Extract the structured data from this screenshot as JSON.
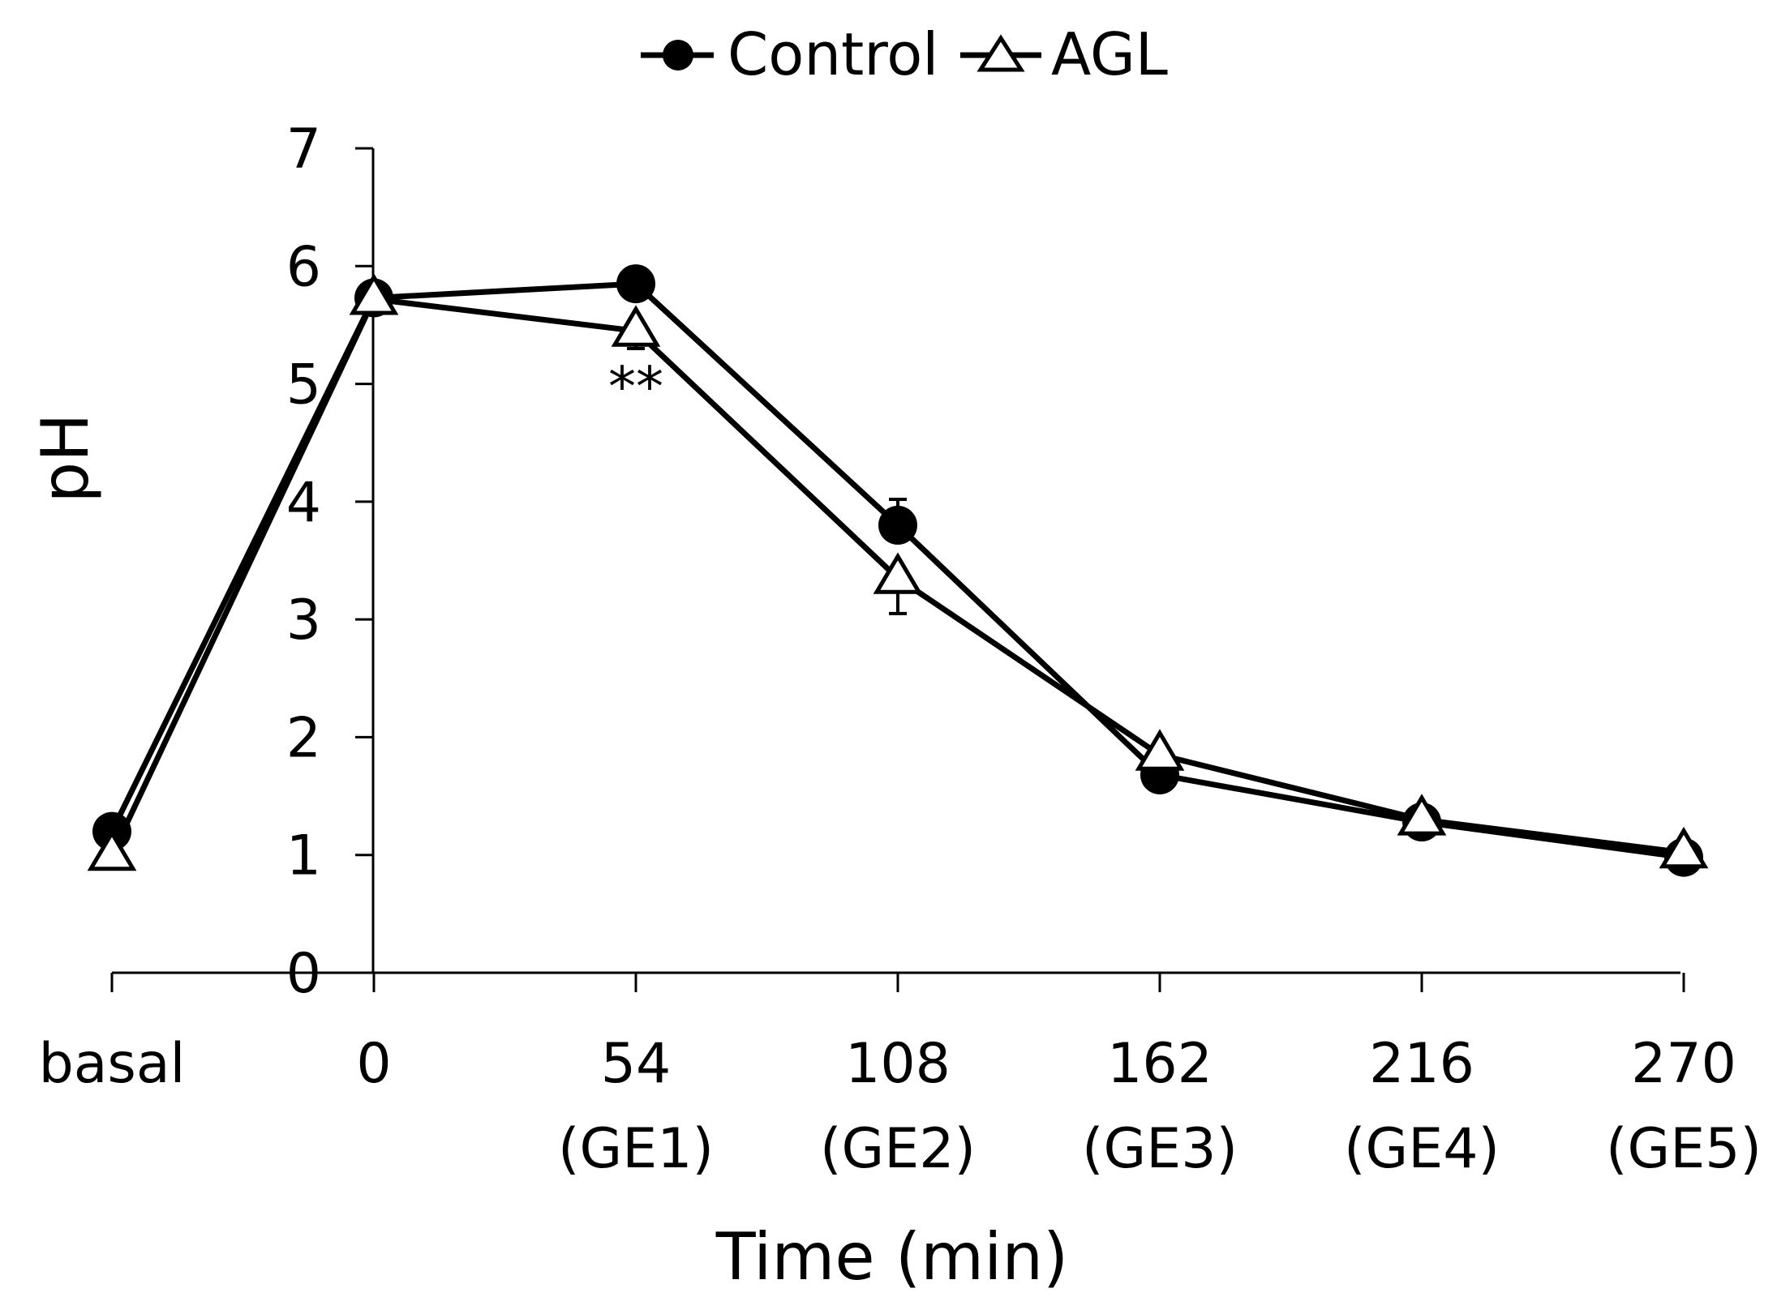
{
  "chart_data": {
    "type": "line",
    "title": "",
    "xlabel": "Time (min)",
    "ylabel": "pH",
    "ylim": [
      0,
      7
    ],
    "yticks": [
      "0",
      "1",
      "2",
      "3",
      "4",
      "5",
      "6",
      "7"
    ],
    "categories": [
      {
        "main": "basal",
        "sub": ""
      },
      {
        "main": "0",
        "sub": ""
      },
      {
        "main": "54",
        "sub": "(GE1)"
      },
      {
        "main": "108",
        "sub": "(GE2)"
      },
      {
        "main": "162",
        "sub": "(GE3)"
      },
      {
        "main": "216",
        "sub": "(GE4)"
      },
      {
        "main": "270",
        "sub": "(GE5)"
      }
    ],
    "series": [
      {
        "name": "Control",
        "marker": "filled-circle",
        "values": [
          1.2,
          5.73,
          5.85,
          3.8,
          1.68,
          1.28,
          0.98
        ],
        "errors": [
          0,
          0,
          0,
          0.22,
          0,
          0,
          0
        ]
      },
      {
        "name": "AGL",
        "marker": "open-triangle",
        "values": [
          1.0,
          5.72,
          5.45,
          3.35,
          1.85,
          1.3,
          1.02
        ],
        "errors": [
          0,
          0,
          0.15,
          0.3,
          0.18,
          0,
          0
        ]
      }
    ],
    "annotations": [
      {
        "text": "**",
        "category_index": 2,
        "y": 5.05
      }
    ],
    "legend_position": "top-center",
    "grid": false
  }
}
